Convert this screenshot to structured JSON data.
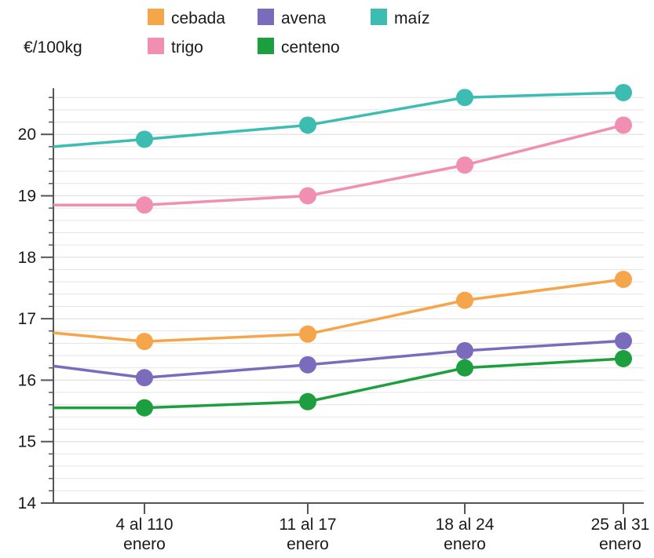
{
  "chart_data": {
    "type": "line",
    "ylabel": "€/100kg",
    "ylim": [
      14,
      20.7
    ],
    "yticks": [
      14,
      15,
      16,
      17,
      18,
      19,
      20
    ],
    "categories": [
      [
        "4 al 110",
        "enero"
      ],
      [
        "11 al 17",
        "enero"
      ],
      [
        "18 al 24",
        "enero"
      ],
      [
        "25 al 31",
        "enero"
      ]
    ],
    "grid": true,
    "legend_position": "top",
    "series": [
      {
        "name": "maíz",
        "color": "#3dbdb1",
        "start": 19.8,
        "values": [
          19.92,
          20.15,
          20.6,
          20.68
        ]
      },
      {
        "name": "trigo",
        "color": "#f08fb2",
        "start": 18.85,
        "values": [
          18.85,
          19.0,
          19.5,
          20.15
        ]
      },
      {
        "name": "cebada",
        "color": "#f5a54a",
        "start": 16.77,
        "values": [
          16.63,
          16.75,
          17.3,
          17.64
        ]
      },
      {
        "name": "avena",
        "color": "#7b6bbd",
        "start": 16.23,
        "values": [
          16.04,
          16.25,
          16.48,
          16.64
        ]
      },
      {
        "name": "centeno",
        "color": "#1d9e3f",
        "start": 15.55,
        "values": [
          15.55,
          15.65,
          16.2,
          16.35
        ]
      }
    ],
    "legend_order": [
      "cebada",
      "avena",
      "maíz",
      "trigo",
      "centeno"
    ]
  }
}
